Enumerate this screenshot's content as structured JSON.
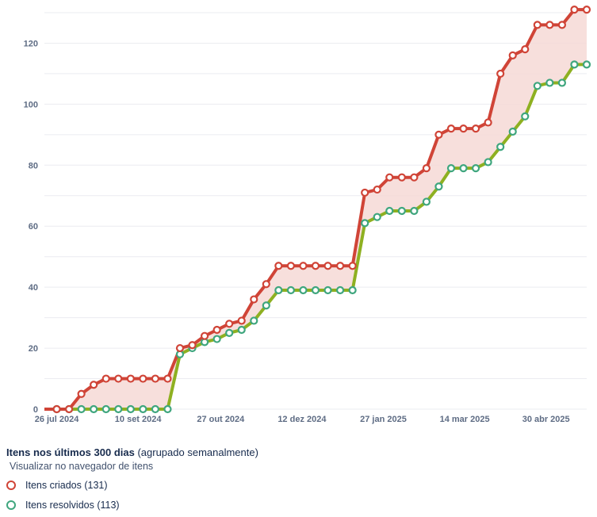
{
  "colors": {
    "created": "#d04437",
    "resolved_marker": "#3fa67e",
    "resolved_line": "#8eb021",
    "fill": "#f6d9d6"
  },
  "footer": {
    "title_bold": "Itens nos últimos 300 dias",
    "title_rest": "(agrupado semanalmente)",
    "link": "Visualizar no navegador de itens",
    "legend_created": "Itens criados (131)",
    "legend_resolved": "Itens resolvidos (113)"
  },
  "chart_data": {
    "type": "line",
    "x_tick_labels": [
      "26 jul 2024",
      "10 set 2024",
      "27 out 2024",
      "12 dez 2024",
      "27 jan 2025",
      "14 mar 2025",
      "30 abr 2025"
    ],
    "y_tick_labels": [
      "0",
      "20",
      "40",
      "60",
      "80",
      "100",
      "120"
    ],
    "ylim": [
      0,
      130
    ],
    "grid": true,
    "x": [
      "19 jul 2024",
      "26 jul 2024",
      "2 ago 2024",
      "9 ago 2024",
      "16 ago 2024",
      "23 ago 2024",
      "30 ago 2024",
      "6 set 2024",
      "13 set 2024",
      "20 set 2024",
      "27 set 2024",
      "4 out 2024",
      "11 out 2024",
      "18 out 2024",
      "25 out 2024",
      "1 nov 2024",
      "8 nov 2024",
      "15 nov 2024",
      "22 nov 2024",
      "29 nov 2024",
      "6 dez 2024",
      "13 dez 2024",
      "20 dez 2024",
      "27 dez 2024",
      "3 jan 2025",
      "10 jan 2025",
      "17 jan 2025",
      "24 jan 2025",
      "31 jan 2025",
      "7 fev 2025",
      "14 fev 2025",
      "21 fev 2025",
      "28 fev 2025",
      "7 mar 2025",
      "14 mar 2025",
      "21 mar 2025",
      "28 mar 2025",
      "4 abr 2025",
      "11 abr 2025",
      "18 abr 2025",
      "25 abr 2025",
      "2 mai 2025",
      "9 mai 2025",
      "16 mai 2025",
      "19 mai 2025"
    ],
    "series": [
      {
        "name": "Itens criados (131)",
        "values": [
          0,
          0,
          0,
          5,
          8,
          10,
          10,
          10,
          10,
          10,
          10,
          20,
          21,
          24,
          26,
          28,
          29,
          36,
          41,
          47,
          47,
          47,
          47,
          47,
          47,
          47,
          71,
          72,
          76,
          76,
          76,
          79,
          90,
          92,
          92,
          92,
          94,
          110,
          116,
          118,
          126,
          126,
          126,
          131,
          131
        ]
      },
      {
        "name": "Itens resolvidos (113)",
        "values": [
          0,
          0,
          0,
          0,
          0,
          0,
          0,
          0,
          0,
          0,
          0,
          18,
          20,
          22,
          23,
          25,
          26,
          29,
          34,
          39,
          39,
          39,
          39,
          39,
          39,
          39,
          61,
          63,
          65,
          65,
          65,
          68,
          73,
          79,
          79,
          79,
          81,
          86,
          91,
          96,
          106,
          107,
          107,
          113,
          113
        ]
      }
    ]
  }
}
